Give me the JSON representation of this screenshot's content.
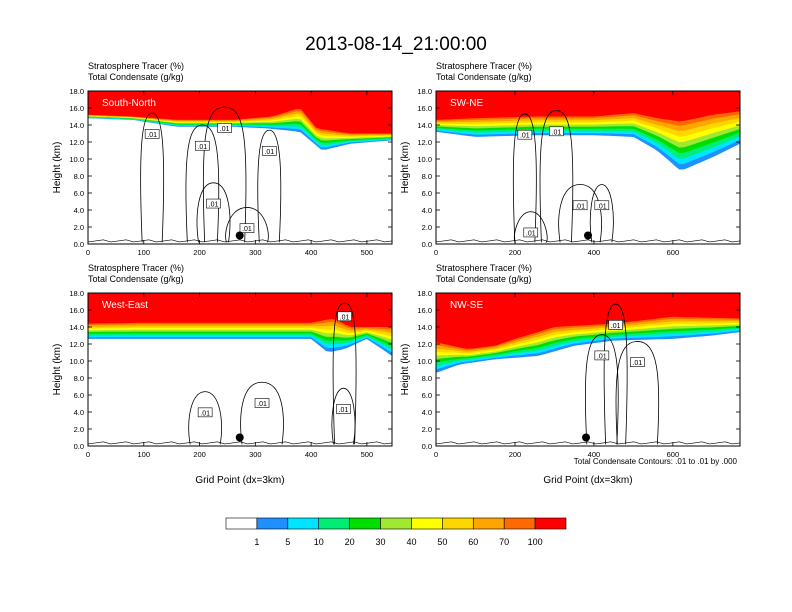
{
  "title": "2013-08-14_21:00:00",
  "colors": {
    "scale": [
      "#ffffff",
      "#1e90ff",
      "#00e5ff",
      "#00ee76",
      "#00dd00",
      "#a0e832",
      "#ffff00",
      "#ffd700",
      "#ffa500",
      "#ff6a00",
      "#ff0000"
    ],
    "contour": "#000000",
    "marker": "#000000"
  },
  "colorbar": {
    "labels": [
      "1",
      "5",
      "10",
      "20",
      "30",
      "40",
      "50",
      "60",
      "70",
      "100"
    ]
  },
  "contour_note": "Total Condensate Contours: .01 to .01 by .000",
  "chart_data": [
    {
      "type": "heatmap",
      "panel": "South-North",
      "label": "South-North",
      "title_line1": "Stratosphere Tracer   (%)",
      "title_line2": "Total Condensate   (g/kg)",
      "ylabel": "Height (km)",
      "xlabel": "",
      "xlim": [
        0,
        545
      ],
      "ylim": [
        0,
        18
      ],
      "xticks": [
        0,
        100,
        200,
        300,
        400,
        500
      ],
      "xticklabels": [
        "0",
        "100",
        "200",
        "300",
        "400",
        "500"
      ],
      "yticks": [
        0,
        2,
        4,
        6,
        8,
        10,
        12,
        14,
        16,
        18
      ],
      "yticklabels": [
        "0.0",
        "2.0",
        "4.0",
        "6.0",
        "8.0",
        "10.0",
        "12.0",
        "14.0",
        "16.0",
        "18.0"
      ],
      "tracer_base_km": [
        [
          0,
          14.8
        ],
        [
          80,
          14.6
        ],
        [
          160,
          13.8
        ],
        [
          260,
          13.8
        ],
        [
          320,
          13.6
        ],
        [
          380,
          13.2
        ],
        [
          420,
          11.0
        ],
        [
          470,
          11.8
        ],
        [
          545,
          12.2
        ]
      ],
      "red_base_km": [
        [
          0,
          15.2
        ],
        [
          80,
          15.0
        ],
        [
          160,
          14.6
        ],
        [
          260,
          14.6
        ],
        [
          330,
          15.0
        ],
        [
          380,
          16.0
        ],
        [
          410,
          13.6
        ],
        [
          470,
          13.0
        ],
        [
          545,
          13.0
        ]
      ],
      "contour_labels": [
        {
          "text": ".01",
          "x": 115,
          "y": 12.9
        },
        {
          "text": ".01",
          "x": 205,
          "y": 11.5
        },
        {
          "text": ".01",
          "x": 245,
          "y": 13.6
        },
        {
          "text": ".01",
          "x": 325,
          "y": 10.9
        },
        {
          "text": ".01",
          "x": 225,
          "y": 4.7
        },
        {
          "text": ".01",
          "x": 285,
          "y": 1.8
        }
      ],
      "marker": {
        "x": 272,
        "y": 1.0
      }
    },
    {
      "type": "heatmap",
      "panel": "SW-NE",
      "label": "SW-NE",
      "title_line1": "Stratosphere Tracer   (%)",
      "title_line2": "Total Condensate   (g/kg)",
      "ylabel": "Height (km)",
      "xlabel": "",
      "xlim": [
        0,
        770
      ],
      "ylim": [
        0,
        18
      ],
      "xticks": [
        0,
        200,
        400,
        600
      ],
      "xticklabels": [
        "0",
        "200",
        "400",
        "600"
      ],
      "yticks": [
        0,
        2,
        4,
        6,
        8,
        10,
        12,
        14,
        16,
        18
      ],
      "yticklabels": [
        "0.0",
        "2.0",
        "4.0",
        "6.0",
        "8.0",
        "10.0",
        "12.0",
        "14.0",
        "16.0",
        "18.0"
      ],
      "tracer_base_km": [
        [
          0,
          13.2
        ],
        [
          100,
          12.6
        ],
        [
          250,
          12.8
        ],
        [
          400,
          12.8
        ],
        [
          500,
          12.6
        ],
        [
          560,
          11.0
        ],
        [
          620,
          8.6
        ],
        [
          700,
          10.2
        ],
        [
          770,
          11.8
        ]
      ],
      "red_base_km": [
        [
          0,
          14.6
        ],
        [
          100,
          14.8
        ],
        [
          250,
          15.0
        ],
        [
          400,
          15.0
        ],
        [
          500,
          15.4
        ],
        [
          560,
          14.8
        ],
        [
          620,
          14.4
        ],
        [
          700,
          15.2
        ],
        [
          770,
          15.6
        ]
      ],
      "contour_labels": [
        {
          "text": ".01",
          "x": 225,
          "y": 12.8
        },
        {
          "text": ".01",
          "x": 305,
          "y": 13.2
        },
        {
          "text": ".01",
          "x": 365,
          "y": 4.5
        },
        {
          "text": ".01",
          "x": 420,
          "y": 4.5
        },
        {
          "text": ".01",
          "x": 240,
          "y": 1.3
        }
      ],
      "marker": {
        "x": 385,
        "y": 1.0
      }
    },
    {
      "type": "heatmap",
      "panel": "West-East",
      "label": "West-East",
      "title_line1": "Stratosphere Tracer   (%)",
      "title_line2": "Total Condensate   (g/kg)",
      "ylabel": "Height (km)",
      "xlabel": "Grid Point (dx=3km)",
      "xlim": [
        0,
        545
      ],
      "ylim": [
        0,
        18
      ],
      "xticks": [
        0,
        100,
        200,
        300,
        400,
        500
      ],
      "xticklabels": [
        "0",
        "100",
        "200",
        "300",
        "400",
        "500"
      ],
      "yticks": [
        0,
        2,
        4,
        6,
        8,
        10,
        12,
        14,
        16,
        18
      ],
      "yticklabels": [
        "0.0",
        "2.0",
        "4.0",
        "6.0",
        "8.0",
        "10.0",
        "12.0",
        "14.0",
        "16.0",
        "18.0"
      ],
      "tracer_base_km": [
        [
          0,
          12.6
        ],
        [
          100,
          12.6
        ],
        [
          200,
          12.6
        ],
        [
          300,
          12.6
        ],
        [
          400,
          12.6
        ],
        [
          430,
          11.0
        ],
        [
          460,
          11.4
        ],
        [
          500,
          12.6
        ],
        [
          545,
          10.6
        ]
      ],
      "red_base_km": [
        [
          0,
          14.4
        ],
        [
          100,
          14.5
        ],
        [
          200,
          14.5
        ],
        [
          300,
          14.5
        ],
        [
          400,
          14.5
        ],
        [
          440,
          15.0
        ],
        [
          470,
          14.0
        ],
        [
          545,
          14.0
        ]
      ],
      "contour_labels": [
        {
          "text": ".01",
          "x": 460,
          "y": 15.2
        },
        {
          "text": ".01",
          "x": 210,
          "y": 3.9
        },
        {
          "text": ".01",
          "x": 312,
          "y": 5.0
        },
        {
          "text": ".01",
          "x": 458,
          "y": 4.3
        }
      ],
      "marker": {
        "x": 272,
        "y": 1.0
      }
    },
    {
      "type": "heatmap",
      "panel": "NW-SE",
      "label": "NW-SE",
      "title_line1": "Stratosphere Tracer   (%)",
      "title_line2": "Total Condensate   (g/kg)",
      "ylabel": "Height (km)",
      "xlabel": "Grid Point (dx=3km)",
      "xlim": [
        0,
        770
      ],
      "ylim": [
        0,
        18
      ],
      "xticks": [
        0,
        200,
        400,
        600
      ],
      "xticklabels": [
        "0",
        "200",
        "400",
        "600"
      ],
      "yticks": [
        0,
        2,
        4,
        6,
        8,
        10,
        12,
        14,
        16,
        18
      ],
      "yticklabels": [
        "0.0",
        "2.0",
        "4.0",
        "6.0",
        "8.0",
        "10.0",
        "12.0",
        "14.0",
        "16.0",
        "18.0"
      ],
      "tracer_base_km": [
        [
          0,
          8.6
        ],
        [
          60,
          9.6
        ],
        [
          150,
          10.2
        ],
        [
          260,
          10.6
        ],
        [
          350,
          11.8
        ],
        [
          450,
          12.4
        ],
        [
          600,
          12.6
        ],
        [
          700,
          13.0
        ],
        [
          770,
          13.4
        ]
      ],
      "red_base_km": [
        [
          0,
          12.2
        ],
        [
          80,
          11.4
        ],
        [
          150,
          11.8
        ],
        [
          200,
          12.6
        ],
        [
          300,
          14.0
        ],
        [
          450,
          14.4
        ],
        [
          600,
          15.2
        ],
        [
          770,
          15.0
        ]
      ],
      "contour_labels": [
        {
          "text": ".01",
          "x": 455,
          "y": 14.2
        },
        {
          "text": ".01",
          "x": 420,
          "y": 10.6
        },
        {
          "text": ".01",
          "x": 510,
          "y": 9.8
        }
      ],
      "marker": {
        "x": 380,
        "y": 1.0
      }
    }
  ]
}
